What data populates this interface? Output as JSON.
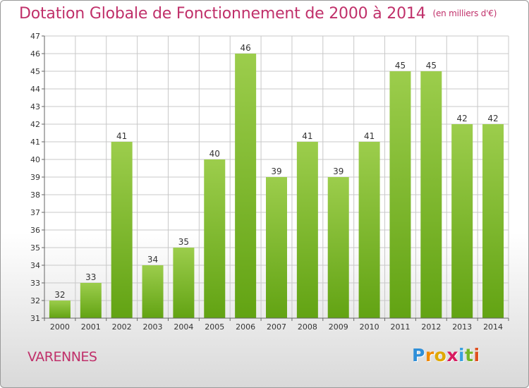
{
  "header": {
    "title": "Dotation Globale de Fonctionnement de 2000 à 2014",
    "subtitle": "(en milliers d'€)"
  },
  "footer": {
    "commune": "VARENNES",
    "logo_letters": [
      {
        "ch": "P",
        "color": "#2f8fd8"
      },
      {
        "ch": "r",
        "color": "#f08a00"
      },
      {
        "ch": "o",
        "color": "#e0a800"
      },
      {
        "ch": "x",
        "color": "#d81b60"
      },
      {
        "ch": "i",
        "color": "#3aa0e0"
      },
      {
        "ch": "t",
        "color": "#74b726"
      },
      {
        "ch": "i",
        "color": "#e05020"
      }
    ]
  },
  "colors": {
    "bar_top": "#9ccd4c",
    "bar_bottom": "#62a313",
    "title": "#c0306a",
    "grid": "#c8c8c8"
  },
  "chart_data": {
    "type": "bar",
    "title": "Dotation Globale de Fonctionnement de 2000 à 2014",
    "subtitle": "(en milliers d'€)",
    "categories": [
      "2000",
      "2001",
      "2002",
      "2003",
      "2004",
      "2005",
      "2006",
      "2007",
      "2008",
      "2009",
      "2010",
      "2011",
      "2012",
      "2013",
      "2014"
    ],
    "values": [
      32,
      33,
      41,
      34,
      35,
      40,
      46,
      39,
      41,
      39,
      41,
      45,
      45,
      42,
      42
    ],
    "ylim": [
      31,
      47
    ],
    "yticks": [
      31,
      32,
      33,
      34,
      35,
      36,
      37,
      38,
      39,
      40,
      41,
      42,
      43,
      44,
      45,
      46,
      47
    ],
    "grid": true,
    "data_labels": true
  }
}
